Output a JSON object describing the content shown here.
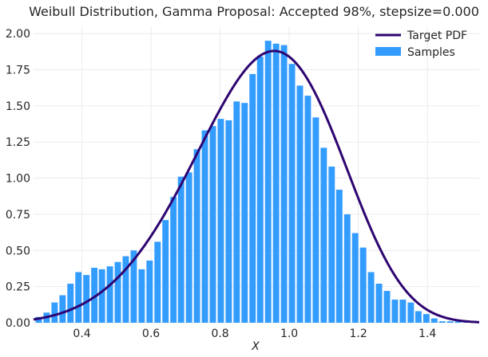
{
  "chart_data": {
    "type": "bar",
    "title": "Weibull Distribution, Gamma Proposal: Accepted 98%, stepsize=0.000",
    "xlabel": "X",
    "ylabel": "",
    "xlim": [
      0.26,
      1.55
    ],
    "ylim": [
      0,
      2.05
    ],
    "grid": true,
    "legend_placement": "top-right",
    "xticks": [
      "0.4",
      "0.6",
      "0.8",
      "1.0",
      "1.2",
      "1.4"
    ],
    "yticks": [
      "0.00",
      "0.25",
      "0.50",
      "0.75",
      "1.00",
      "1.25",
      "1.50",
      "1.75",
      "2.00"
    ],
    "bin_width": 0.0229,
    "series": [
      {
        "name": "Samples",
        "kind": "histogram",
        "color": "#339cff",
        "x": [
          0.275,
          0.298,
          0.321,
          0.344,
          0.367,
          0.39,
          0.413,
          0.436,
          0.458,
          0.481,
          0.504,
          0.527,
          0.55,
          0.573,
          0.596,
          0.619,
          0.642,
          0.665,
          0.687,
          0.71,
          0.733,
          0.756,
          0.779,
          0.802,
          0.825,
          0.848,
          0.871,
          0.894,
          0.916,
          0.939,
          0.962,
          0.985,
          1.008,
          1.031,
          1.054,
          1.077,
          1.1,
          1.123,
          1.145,
          1.168,
          1.191,
          1.214,
          1.237,
          1.26,
          1.283,
          1.306,
          1.329,
          1.352,
          1.374,
          1.397,
          1.42,
          1.443,
          1.466,
          1.489,
          1.512
        ],
        "values": [
          0.04,
          0.07,
          0.14,
          0.19,
          0.27,
          0.35,
          0.33,
          0.38,
          0.37,
          0.39,
          0.42,
          0.46,
          0.5,
          0.37,
          0.43,
          0.56,
          0.71,
          0.87,
          1.01,
          1.04,
          1.2,
          1.33,
          1.36,
          1.41,
          1.4,
          1.53,
          1.52,
          1.72,
          1.84,
          1.95,
          1.93,
          1.92,
          1.79,
          1.64,
          1.57,
          1.42,
          1.21,
          1.08,
          0.92,
          0.75,
          0.62,
          0.52,
          0.35,
          0.27,
          0.22,
          0.16,
          0.16,
          0.14,
          0.08,
          0.06,
          0.03,
          0.01,
          0.01,
          0.01,
          0.01
        ]
      },
      {
        "name": "Target PDF",
        "kind": "line",
        "color": "#2e0571",
        "k": 5.0,
        "lambda": 1.0
      }
    ]
  }
}
